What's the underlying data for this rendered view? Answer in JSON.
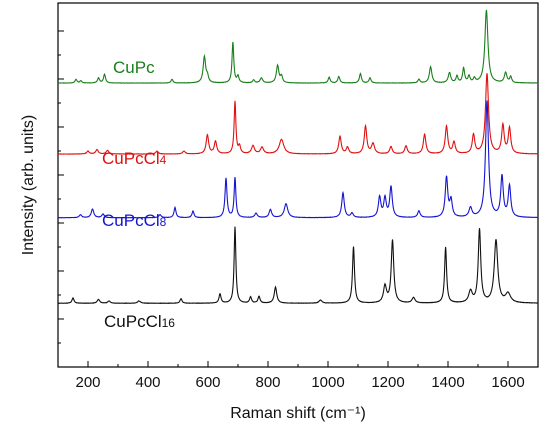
{
  "chart_data": {
    "type": "line",
    "title": "",
    "xlabel": "Raman shift (cm⁻¹)",
    "ylabel": "Intensity (arb. units)",
    "xlim": [
      100,
      1700
    ],
    "x_ticks": [
      200,
      400,
      600,
      800,
      1000,
      1200,
      1400,
      1600
    ],
    "grid": false,
    "legend": "inline labels",
    "series": [
      {
        "name": "CuPc",
        "label_main": "CuPc",
        "label_sub": "",
        "color": "#1a7f1a",
        "offset": 0.78,
        "scale": 0.2,
        "noise": 0.004,
        "peaks": [
          [
            160,
            0.05,
            4
          ],
          [
            176,
            0.03,
            4
          ],
          [
            235,
            0.07,
            4
          ],
          [
            255,
            0.12,
            4
          ],
          [
            480,
            0.05,
            4
          ],
          [
            588,
            0.36,
            5
          ],
          [
            598,
            0.08,
            4
          ],
          [
            683,
            0.56,
            3.5
          ],
          [
            700,
            0.09,
            4
          ],
          [
            752,
            0.04,
            4
          ],
          [
            778,
            0.07,
            5
          ],
          [
            832,
            0.24,
            5
          ],
          [
            845,
            0.09,
            4
          ],
          [
            1004,
            0.08,
            4
          ],
          [
            1036,
            0.09,
            4
          ],
          [
            1108,
            0.13,
            4
          ],
          [
            1140,
            0.07,
            4
          ],
          [
            1303,
            0.05,
            4
          ],
          [
            1342,
            0.22,
            5
          ],
          [
            1405,
            0.14,
            5
          ],
          [
            1430,
            0.09,
            4
          ],
          [
            1452,
            0.2,
            4
          ],
          [
            1470,
            0.09,
            4
          ],
          [
            1488,
            0.06,
            4
          ],
          [
            1528,
            1.0,
            6
          ],
          [
            1592,
            0.14,
            5
          ],
          [
            1609,
            0.08,
            4
          ]
        ]
      },
      {
        "name": "CuPcCl4",
        "label_main": "CuPcCl",
        "label_sub": "4",
        "color": "#e01010",
        "offset": 0.585,
        "scale": 0.2,
        "noise": 0.004,
        "peaks": [
          [
            200,
            0.04,
            5
          ],
          [
            230,
            0.06,
            5
          ],
          [
            265,
            0.05,
            5
          ],
          [
            430,
            0.04,
            5
          ],
          [
            520,
            0.04,
            5
          ],
          [
            598,
            0.26,
            5
          ],
          [
            625,
            0.17,
            5
          ],
          [
            690,
            0.72,
            3.5
          ],
          [
            705,
            0.1,
            4
          ],
          [
            750,
            0.11,
            6
          ],
          [
            780,
            0.09,
            6
          ],
          [
            845,
            0.2,
            9
          ],
          [
            1040,
            0.24,
            5
          ],
          [
            1065,
            0.09,
            5
          ],
          [
            1125,
            0.38,
            5
          ],
          [
            1150,
            0.14,
            6
          ],
          [
            1210,
            0.1,
            5
          ],
          [
            1260,
            0.11,
            5
          ],
          [
            1322,
            0.27,
            5
          ],
          [
            1395,
            0.38,
            5
          ],
          [
            1420,
            0.16,
            5
          ],
          [
            1485,
            0.26,
            5
          ],
          [
            1530,
            1.1,
            6
          ],
          [
            1583,
            0.39,
            5
          ],
          [
            1605,
            0.35,
            5
          ]
        ]
      },
      {
        "name": "CuPcCl8",
        "label_main": "CuPcCl",
        "label_sub": "8",
        "color": "#1515d0",
        "offset": 0.41,
        "scale": 0.2,
        "noise": 0.004,
        "peaks": [
          [
            175,
            0.04,
            5
          ],
          [
            215,
            0.12,
            5
          ],
          [
            250,
            0.05,
            5
          ],
          [
            440,
            0.04,
            5
          ],
          [
            490,
            0.14,
            4
          ],
          [
            550,
            0.09,
            4
          ],
          [
            660,
            0.54,
            4
          ],
          [
            690,
            0.55,
            3.5
          ],
          [
            760,
            0.06,
            5
          ],
          [
            808,
            0.11,
            5
          ],
          [
            860,
            0.19,
            7
          ],
          [
            1050,
            0.34,
            5
          ],
          [
            1080,
            0.06,
            5
          ],
          [
            1172,
            0.28,
            5
          ],
          [
            1190,
            0.26,
            5
          ],
          [
            1210,
            0.42,
            5
          ],
          [
            1303,
            0.09,
            5
          ],
          [
            1395,
            0.55,
            5
          ],
          [
            1410,
            0.23,
            5
          ],
          [
            1475,
            0.13,
            6
          ],
          [
            1530,
            1.6,
            6
          ],
          [
            1580,
            0.56,
            5
          ],
          [
            1605,
            0.43,
            5
          ]
        ]
      },
      {
        "name": "CuPcCl16",
        "label_main": "CuPcCl",
        "label_sub": "16",
        "color": "#111111",
        "offset": 0.175,
        "scale": 0.21,
        "noise": 0.004,
        "peaks": [
          [
            150,
            0.07,
            4
          ],
          [
            235,
            0.05,
            5
          ],
          [
            270,
            0.03,
            5
          ],
          [
            370,
            0.03,
            6
          ],
          [
            510,
            0.06,
            4
          ],
          [
            640,
            0.12,
            4
          ],
          [
            690,
            1.0,
            3.5
          ],
          [
            742,
            0.08,
            4
          ],
          [
            770,
            0.09,
            4
          ],
          [
            825,
            0.21,
            5
          ],
          [
            975,
            0.04,
            6
          ],
          [
            1085,
            0.74,
            4
          ],
          [
            1190,
            0.22,
            6
          ],
          [
            1215,
            0.82,
            5
          ],
          [
            1285,
            0.07,
            6
          ],
          [
            1392,
            0.73,
            4
          ],
          [
            1475,
            0.15,
            7
          ],
          [
            1505,
            0.96,
            5
          ],
          [
            1560,
            0.82,
            7
          ],
          [
            1600,
            0.12,
            10
          ]
        ]
      }
    ]
  }
}
